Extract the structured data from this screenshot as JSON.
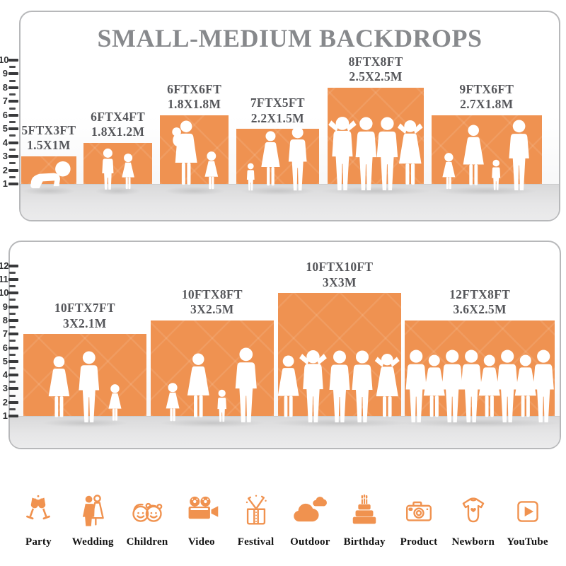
{
  "title": "SMALL-MEDIUM BACKDROPS",
  "colors": {
    "bar_orange": "#EF9251",
    "icon_orange": "#F0924F",
    "title_gray": "#87898C",
    "label_gray": "#55565A",
    "floor_gray": "#E2E2E3",
    "ruler_dark": "#38393B",
    "panel_border": "#B7B8BA"
  },
  "chart_data": {
    "type": "bar",
    "title": "SMALL-MEDIUM BACKDROPS",
    "units": "feet",
    "panels": [
      {
        "name": "small-medium-sizes",
        "ruler_ticks": [
          1,
          2,
          3,
          4,
          5,
          6,
          7,
          8,
          9,
          10
        ],
        "bars": [
          {
            "size_ft": "5FTX3FT",
            "size_m": "1.5X1M",
            "width_ft": 5,
            "height_ft": 3,
            "people": [
              "baby"
            ]
          },
          {
            "size_ft": "6FTX4FT",
            "size_m": "1.8X1.2M",
            "width_ft": 6,
            "height_ft": 4,
            "people": [
              "boy",
              "girl"
            ]
          },
          {
            "size_ft": "6FTX6FT",
            "size_m": "1.8X1.8M",
            "width_ft": 6,
            "height_ft": 6,
            "people": [
              "woman-baby",
              "girl"
            ]
          },
          {
            "size_ft": "7FTX5FT",
            "size_m": "2.2X1.5M",
            "width_ft": 7,
            "height_ft": 5,
            "people": [
              "child",
              "woman",
              "man"
            ]
          },
          {
            "size_ft": "8FTX8FT",
            "size_m": "2.5X2.5M",
            "width_ft": 8,
            "height_ft": 8,
            "people": [
              "man-up",
              "man",
              "man",
              "woman-up"
            ]
          },
          {
            "size_ft": "9FTX6FT",
            "size_m": "2.7X1.8M",
            "width_ft": 9,
            "height_ft": 6,
            "people": [
              "girl",
              "woman",
              "child",
              "man"
            ]
          }
        ]
      },
      {
        "name": "medium-large-sizes",
        "ruler_ticks": [
          1,
          2,
          3,
          4,
          5,
          6,
          7,
          8,
          9,
          10,
          11,
          12
        ],
        "bars": [
          {
            "size_ft": "10FTX7FT",
            "size_m": "3X2.1M",
            "width_ft": 10,
            "height_ft": 7,
            "people": [
              "woman",
              "man",
              "girl"
            ]
          },
          {
            "size_ft": "10FTX8FT",
            "size_m": "3X2.5M",
            "width_ft": 10,
            "height_ft": 8,
            "people": [
              "girl",
              "woman",
              "child",
              "man"
            ]
          },
          {
            "size_ft": "10FTX10FT",
            "size_m": "3X3M",
            "width_ft": 10,
            "height_ft": 10,
            "people": [
              "woman",
              "man-up",
              "man",
              "man",
              "woman-up"
            ]
          },
          {
            "size_ft": "12FTX8FT",
            "size_m": "3.6X2.5M",
            "width_ft": 12,
            "height_ft": 8,
            "people": [
              "man",
              "woman",
              "man",
              "man",
              "woman",
              "man",
              "woman",
              "man"
            ]
          }
        ]
      }
    ]
  },
  "icons": {
    "items": [
      {
        "label": "Party",
        "icon": "party-icon"
      },
      {
        "label": "Wedding",
        "icon": "wedding-icon"
      },
      {
        "label": "Children",
        "icon": "children-icon"
      },
      {
        "label": "Video",
        "icon": "video-icon"
      },
      {
        "label": "Festival",
        "icon": "festival-icon"
      },
      {
        "label": "Outdoor",
        "icon": "outdoor-icon"
      },
      {
        "label": "Birthday",
        "icon": "birthday-icon"
      },
      {
        "label": "Product",
        "icon": "product-icon"
      },
      {
        "label": "Newborn",
        "icon": "newborn-icon"
      },
      {
        "label": "YouTube",
        "icon": "youtube-icon"
      }
    ]
  }
}
